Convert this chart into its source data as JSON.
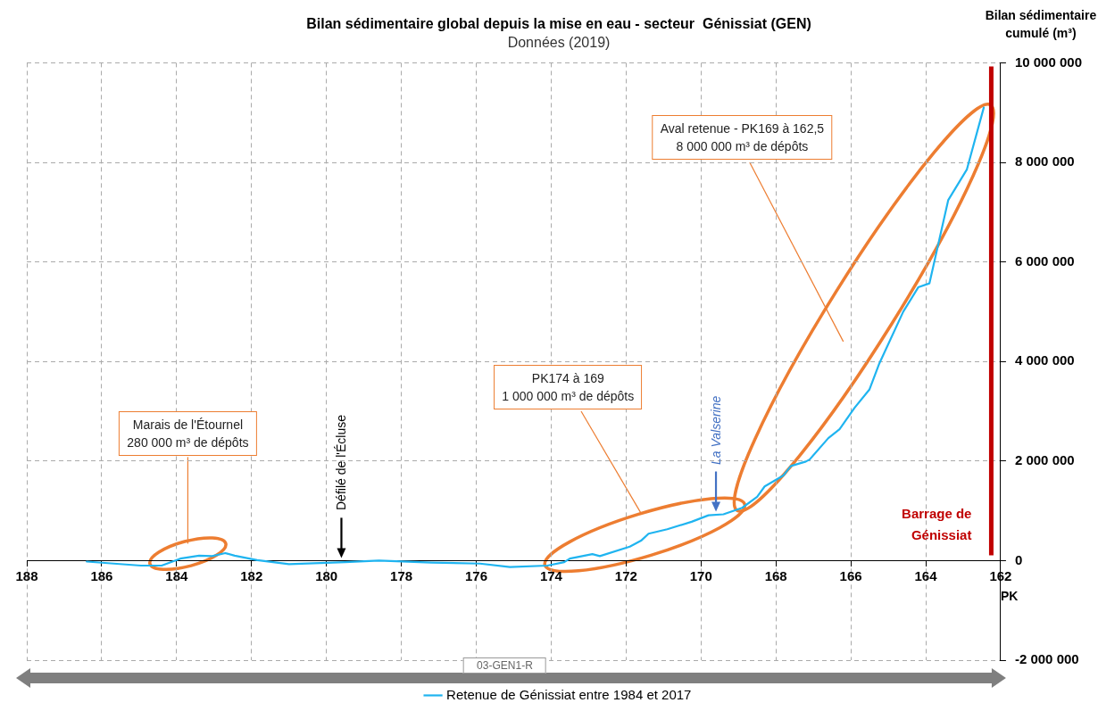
{
  "chart_data": {
    "type": "line",
    "title": "Bilan sédimentaire global depuis la mise en eau - secteur  Génissiat (GEN)",
    "subtitle": "Données (2019)",
    "xlabel": "PK",
    "ylabel": "Bilan sédimentaire cumulé (m³)",
    "xlim": [
      188,
      162
    ],
    "xticks": [
      188,
      186,
      184,
      182,
      180,
      178,
      176,
      174,
      172,
      170,
      168,
      166,
      164,
      162
    ],
    "ylim": [
      -2000000,
      10000000
    ],
    "yticks": [
      {
        "value": -2000000,
        "label": "-2 000 000"
      },
      {
        "value": 0,
        "label": "0"
      },
      {
        "value": 2000000,
        "label": "2 000 000"
      },
      {
        "value": 4000000,
        "label": "4 000 000"
      },
      {
        "value": 6000000,
        "label": "6 000 000"
      },
      {
        "value": 8000000,
        "label": "8 000 000"
      },
      {
        "value": 10000000,
        "label": "10 000 000"
      }
    ],
    "series": [
      {
        "name": "Retenue de Génissiat entre 1984 et 2017",
        "color": "#1fb4f0",
        "x": [
          186.4,
          184.95,
          184.4,
          183.9,
          183.4,
          183.05,
          182.7,
          182.45,
          181.85,
          181.0,
          179.5,
          178.6,
          177.2,
          175.9,
          175.1,
          174.1,
          173.65,
          173.5,
          172.9,
          172.7,
          171.9,
          171.6,
          171.4,
          170.9,
          170.25,
          169.8,
          169.4,
          168.9,
          168.5,
          168.3,
          167.8,
          167.6,
          167.2,
          167.1,
          166.6,
          166.3,
          165.9,
          165.5,
          165.25,
          164.6,
          164.2,
          163.9,
          163.7,
          163.4,
          162.9,
          162.45
        ],
        "values": [
          -20000,
          -100000,
          -100000,
          40000,
          100000,
          90000,
          150000,
          100000,
          10000,
          -70000,
          -30000,
          0,
          -40000,
          -60000,
          -130000,
          -100000,
          -30000,
          40000,
          130000,
          90000,
          280000,
          400000,
          540000,
          630000,
          780000,
          910000,
          930000,
          1060000,
          1280000,
          1490000,
          1710000,
          1900000,
          1990000,
          2030000,
          2460000,
          2640000,
          3070000,
          3440000,
          3940000,
          5000000,
          5490000,
          5570000,
          6240000,
          7240000,
          7860000,
          9100000
        ]
      }
    ],
    "ref_lines": [
      {
        "axis": "x",
        "value": 162.25,
        "label": "Barrage de Génissiat",
        "color": "#c00000"
      }
    ],
    "annotations": [
      "Marais de l'Étournel\n280 000 m³ de dépôts",
      "PK174 à 169\n1 000 000 m³ de dépôts",
      "Aval retenue - PK169 à 162,5\n8 000 000 m³ de dépôts",
      "Défilé de l'Écluse",
      "La Valserine",
      "03-GEN1-R"
    ],
    "grid": true,
    "legend": "bottom",
    "marker": "none",
    "line_style": "solid"
  }
}
